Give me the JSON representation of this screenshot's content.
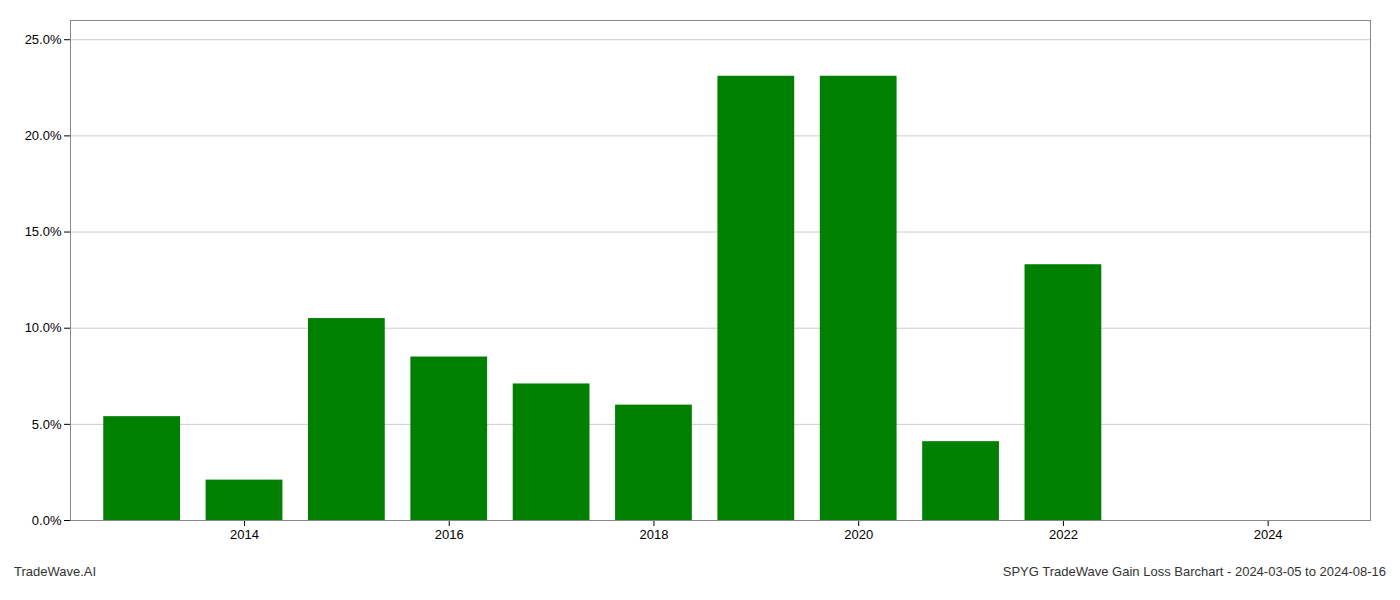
{
  "chart_data": {
    "type": "bar",
    "x": [
      2013,
      2014,
      2015,
      2016,
      2017,
      2018,
      2019,
      2020,
      2021,
      2022
    ],
    "values": [
      5.4,
      2.1,
      10.5,
      8.5,
      7.1,
      6.0,
      23.1,
      23.1,
      4.1,
      13.3
    ],
    "color": "#008000",
    "xlim": [
      2012.3,
      2025.0
    ],
    "xticks": [
      2014,
      2016,
      2018,
      2020,
      2022,
      2024
    ],
    "ylim": [
      0,
      26
    ],
    "yticks": [
      {
        "value": 0.0,
        "label": "0.0%"
      },
      {
        "value": 5.0,
        "label": "5.0%"
      },
      {
        "value": 10.0,
        "label": "10.0%"
      },
      {
        "value": 15.0,
        "label": "15.0%"
      },
      {
        "value": 20.0,
        "label": "20.0%"
      },
      {
        "value": 25.0,
        "label": "25.0%"
      }
    ],
    "grid": true,
    "annotations": [
      "TradeWave.AI",
      "SPYG TradeWave Gain Loss Barchart - 2024-03-05 to 2024-08-16"
    ]
  }
}
